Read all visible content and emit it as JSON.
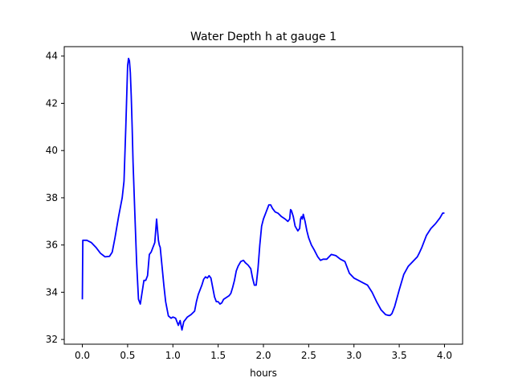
{
  "chart_data": {
    "type": "line",
    "title": "Water Depth h at gauge 1",
    "xlabel": "hours",
    "ylabel": "",
    "xlim": [
      -0.2,
      4.2
    ],
    "ylim": [
      31.8,
      44.4
    ],
    "xticks": [
      0.0,
      0.5,
      1.0,
      1.5,
      2.0,
      2.5,
      3.0,
      3.5,
      4.0
    ],
    "xtick_labels": [
      "0.0",
      "0.5",
      "1.0",
      "1.5",
      "2.0",
      "2.5",
      "3.0",
      "3.5",
      "4.0"
    ],
    "yticks": [
      32,
      34,
      36,
      38,
      40,
      42,
      44
    ],
    "ytick_labels": [
      "32",
      "34",
      "36",
      "38",
      "40",
      "42",
      "44"
    ],
    "grid": false,
    "legend": "none",
    "colors": {
      "line": "#0000ff",
      "axes": "#000000",
      "background": "#ffffff"
    },
    "series": [
      {
        "x": [
          0.0,
          0.005,
          0.01,
          0.05,
          0.1,
          0.15,
          0.2,
          0.25,
          0.3,
          0.33,
          0.36,
          0.4,
          0.42,
          0.44,
          0.46,
          0.48,
          0.5,
          0.51,
          0.52,
          0.53,
          0.54,
          0.55,
          0.56,
          0.58,
          0.6,
          0.62,
          0.64,
          0.66,
          0.68,
          0.7,
          0.72,
          0.74,
          0.75,
          0.76,
          0.78,
          0.8,
          0.82,
          0.84,
          0.85,
          0.86,
          0.87,
          0.88,
          0.9,
          0.92,
          0.95,
          0.98,
          1.0,
          1.03,
          1.06,
          1.08,
          1.1,
          1.12,
          1.14,
          1.16,
          1.2,
          1.24,
          1.26,
          1.28,
          1.3,
          1.32,
          1.34,
          1.36,
          1.38,
          1.4,
          1.42,
          1.44,
          1.46,
          1.48,
          1.5,
          1.52,
          1.54,
          1.56,
          1.58,
          1.6,
          1.62,
          1.64,
          1.66,
          1.68,
          1.7,
          1.72,
          1.75,
          1.78,
          1.8,
          1.83,
          1.86,
          1.88,
          1.9,
          1.92,
          1.94,
          1.96,
          1.98,
          2.0,
          2.03,
          2.06,
          2.08,
          2.1,
          2.13,
          2.16,
          2.2,
          2.24,
          2.27,
          2.29,
          2.3,
          2.31,
          2.33,
          2.35,
          2.38,
          2.4,
          2.41,
          2.42,
          2.43,
          2.44,
          2.46,
          2.48,
          2.5,
          2.53,
          2.56,
          2.6,
          2.63,
          2.66,
          2.7,
          2.75,
          2.8,
          2.85,
          2.9,
          2.95,
          3.0,
          3.05,
          3.1,
          3.15,
          3.2,
          3.25,
          3.3,
          3.35,
          3.38,
          3.4,
          3.42,
          3.45,
          3.5,
          3.55,
          3.6,
          3.65,
          3.7,
          3.72,
          3.75,
          3.8,
          3.85,
          3.9,
          3.95,
          3.98,
          4.0
        ],
        "y": [
          33.7,
          36.2,
          36.2,
          36.2,
          36.1,
          35.9,
          35.65,
          35.5,
          35.52,
          35.7,
          36.3,
          37.2,
          37.6,
          38.0,
          38.7,
          41.0,
          43.6,
          43.9,
          43.8,
          43.3,
          42.3,
          41.0,
          39.5,
          37.3,
          35.2,
          33.7,
          33.5,
          34.0,
          34.5,
          34.5,
          34.7,
          35.6,
          35.65,
          35.7,
          35.9,
          36.1,
          37.1,
          36.2,
          36.0,
          35.9,
          35.5,
          35.1,
          34.3,
          33.6,
          33.0,
          32.9,
          32.95,
          32.9,
          32.6,
          32.8,
          32.4,
          32.75,
          32.85,
          32.95,
          33.05,
          33.2,
          33.6,
          33.9,
          34.1,
          34.3,
          34.55,
          34.65,
          34.6,
          34.7,
          34.6,
          34.2,
          33.8,
          33.6,
          33.6,
          33.5,
          33.55,
          33.7,
          33.75,
          33.8,
          33.85,
          33.95,
          34.2,
          34.5,
          34.9,
          35.1,
          35.3,
          35.35,
          35.25,
          35.15,
          35.0,
          34.6,
          34.3,
          34.3,
          35.0,
          36.0,
          36.8,
          37.1,
          37.4,
          37.7,
          37.7,
          37.55,
          37.4,
          37.35,
          37.2,
          37.1,
          37.0,
          37.1,
          37.5,
          37.45,
          37.2,
          36.8,
          36.6,
          36.7,
          37.1,
          37.2,
          37.1,
          37.3,
          37.0,
          36.6,
          36.3,
          36.0,
          35.8,
          35.5,
          35.35,
          35.4,
          35.4,
          35.6,
          35.55,
          35.4,
          35.3,
          34.8,
          34.6,
          34.5,
          34.4,
          34.3,
          34.0,
          33.6,
          33.25,
          33.05,
          33.02,
          33.02,
          33.1,
          33.4,
          34.1,
          34.75,
          35.1,
          35.3,
          35.5,
          35.65,
          35.9,
          36.4,
          36.7,
          36.9,
          37.15,
          37.35,
          37.35
        ]
      }
    ]
  }
}
